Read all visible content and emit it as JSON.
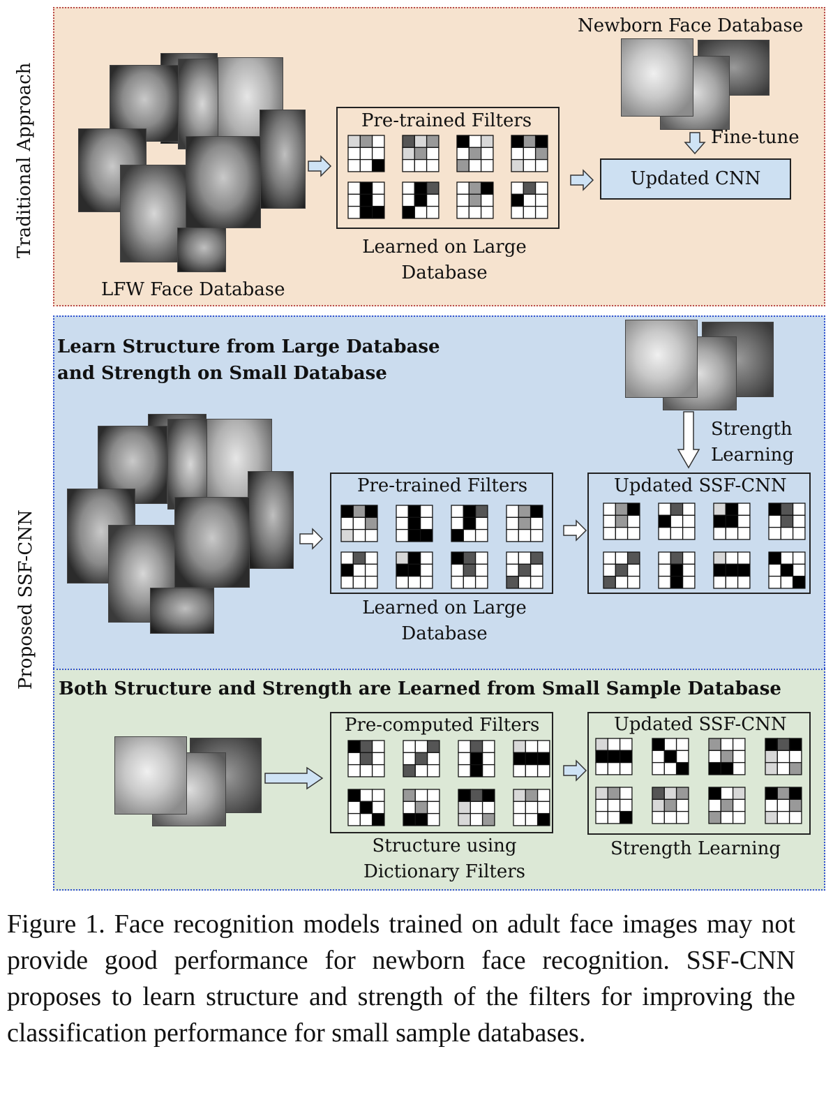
{
  "traditional": {
    "side_label": "Traditional Approach",
    "lfw_label": "LFW Face Database",
    "newborn_label": "Newborn Face Database",
    "pretrained_title": "Pre-trained Filters",
    "learned_caption": "Learned on Large\nDatabase",
    "finetune_label": "Fine-tune",
    "updated_cnn": "Updated CNN"
  },
  "proposed": {
    "side_label": "Proposed SSF-CNN",
    "heading1": "Learn Structure from Large Database\nand Strength on Small Database",
    "pretrained_title": "Pre-trained Filters",
    "learned_caption": "Learned on Large\nDatabase",
    "strength_learning": "Strength\nLearning",
    "updated_title": "Updated SSF-CNN",
    "heading2": "Both Structure and Strength are Learned from Small Sample Database",
    "precomputed_title": "Pre-computed Filters",
    "structure_caption": "Structure using\nDictionary Filters",
    "updated_title2": "Updated SSF-CNN",
    "strength_caption": "Strength Learning"
  },
  "caption": "Figure 1. Face recognition models trained on adult face images may not provide good performance for newborn face recognition. SSF-CNN proposes to learn structure and strength of the filters for improving the classification performance for small sample databases.",
  "colors": {
    "traditional_bg": "#f6e3cf",
    "proposed_bg": "#cbdcee",
    "small_bg": "#dce8d6",
    "box_fill": "#cde0f2",
    "arrow_fill": "#cfe3f5"
  }
}
